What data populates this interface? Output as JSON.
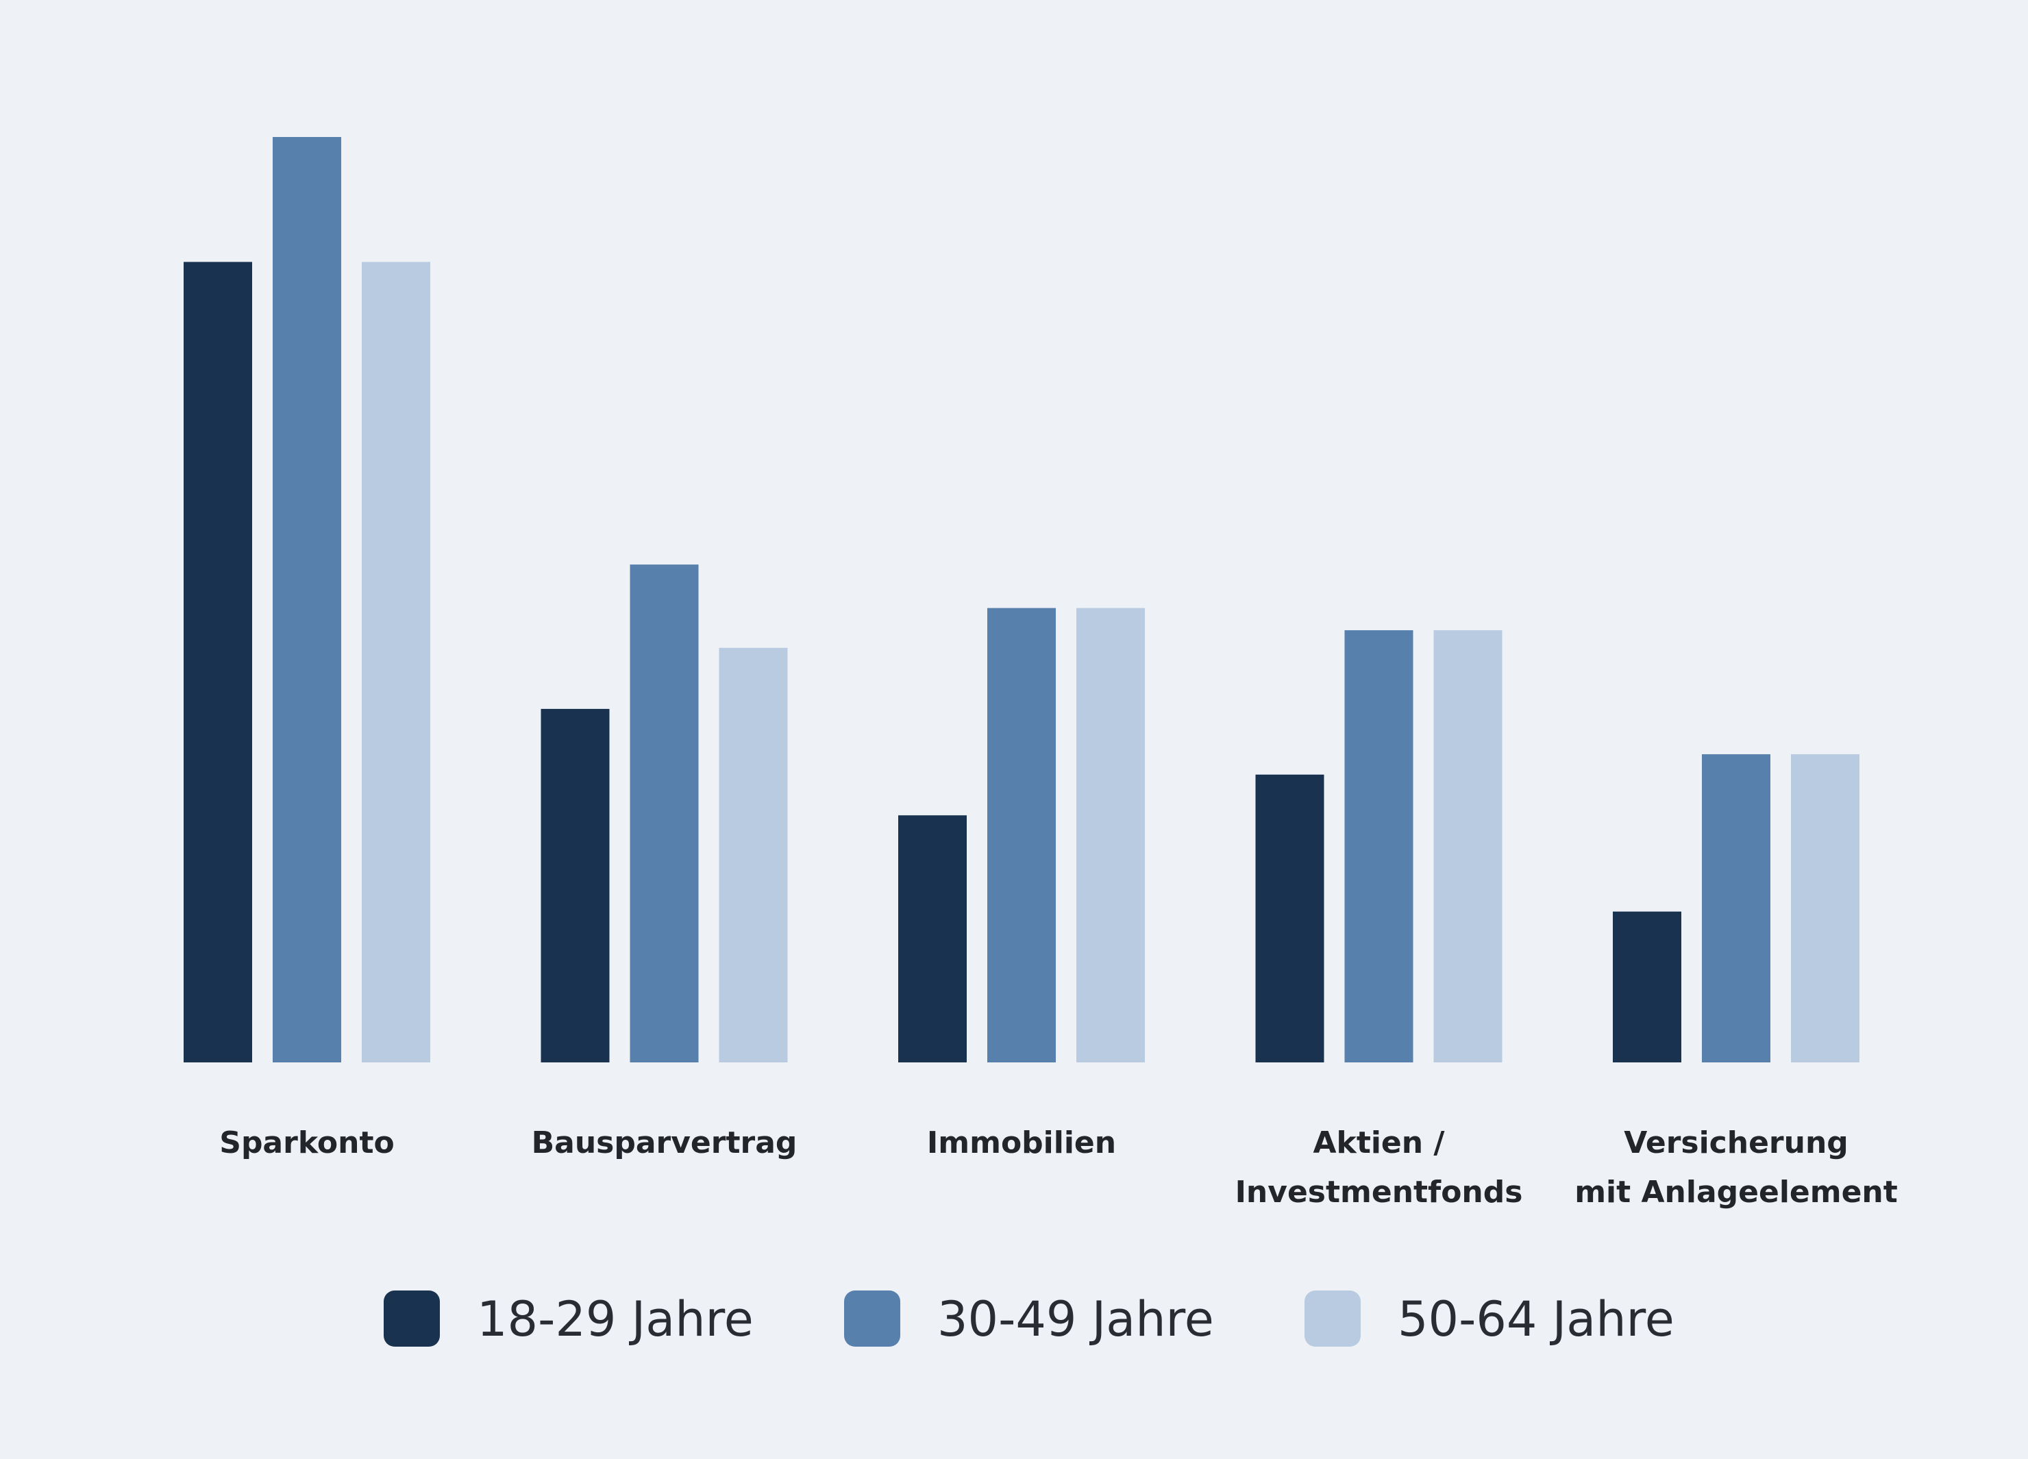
{
  "chart_data": {
    "type": "bar",
    "title": "",
    "xlabel": "",
    "ylabel": "",
    "grid": false,
    "legend_position": "bottom",
    "ylim": [
      0,
      100
    ],
    "categories": [
      [
        "Sparkonto"
      ],
      [
        "Bausparvertrag"
      ],
      [
        "Immobilien"
      ],
      [
        "Aktien /",
        "Investmentfonds"
      ],
      [
        "Versicherung",
        "mit Anlageelement"
      ]
    ],
    "series": [
      {
        "name": "18-29 Jahre",
        "color": "#19324f",
        "values": [
          86.5,
          38.2,
          26.7,
          31.1,
          16.3
        ]
      },
      {
        "name": "30-49 Jahre",
        "color": "#5781ac",
        "values": [
          100,
          53.8,
          49.1,
          46.7,
          33.3
        ]
      },
      {
        "name": "50-64 Jahre",
        "color": "#b8cbe0",
        "values": [
          86.5,
          44.8,
          49.1,
          46.7,
          33.3
        ]
      }
    ]
  }
}
